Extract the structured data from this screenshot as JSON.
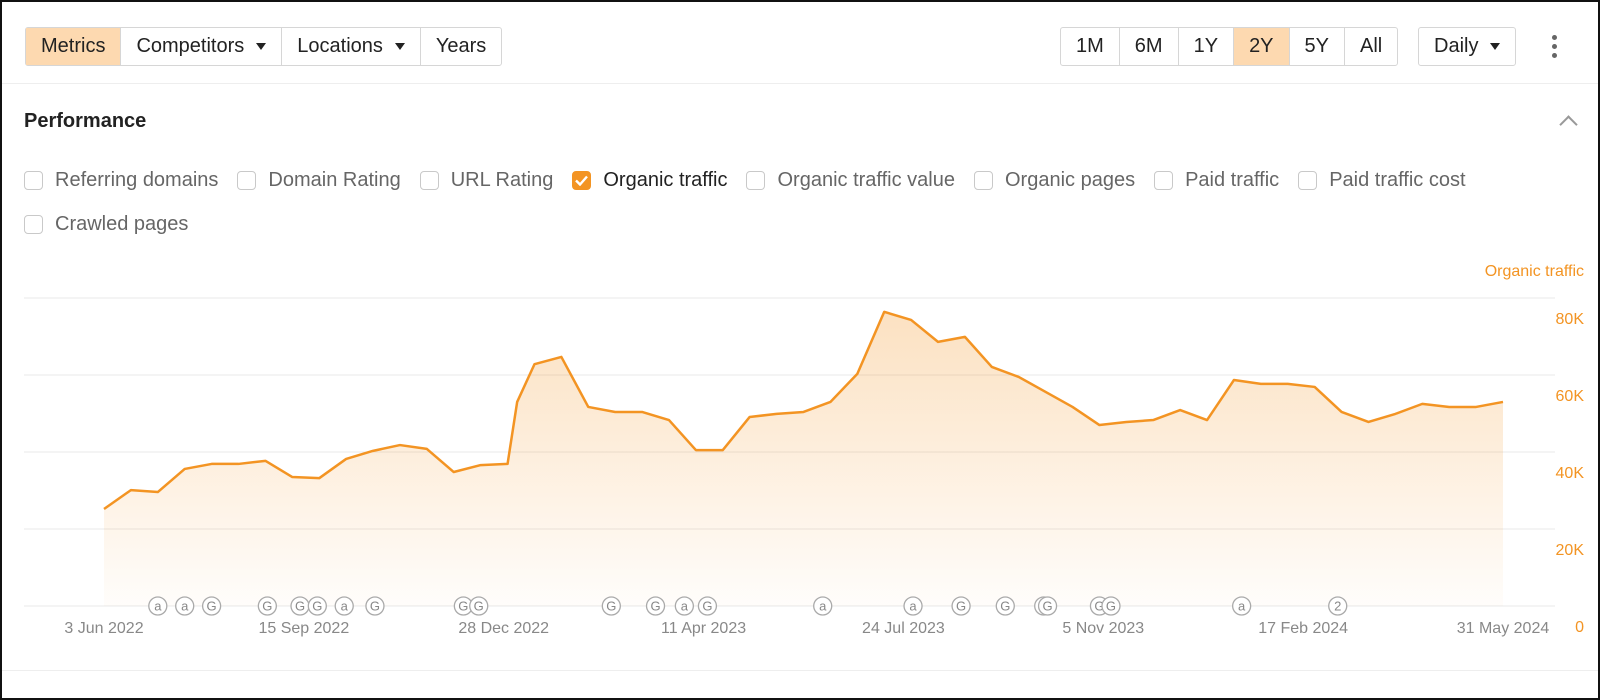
{
  "toolbar": {
    "views": [
      {
        "label": "Metrics",
        "active": true
      },
      {
        "label": "Competitors",
        "dropdown": true
      },
      {
        "label": "Locations",
        "dropdown": true
      },
      {
        "label": "Years"
      }
    ],
    "periods": [
      {
        "label": "1M"
      },
      {
        "label": "6M"
      },
      {
        "label": "1Y"
      },
      {
        "label": "2Y",
        "active": true
      },
      {
        "label": "5Y"
      },
      {
        "label": "All"
      }
    ],
    "interval": {
      "label": "Daily",
      "dropdown": true
    }
  },
  "panel": {
    "title": "Performance",
    "metrics": [
      {
        "label": "Referring domains",
        "checked": false
      },
      {
        "label": "Domain Rating",
        "checked": false
      },
      {
        "label": "URL Rating",
        "checked": false
      },
      {
        "label": "Organic traffic",
        "checked": true
      },
      {
        "label": "Organic traffic value",
        "checked": false
      },
      {
        "label": "Organic pages",
        "checked": false
      },
      {
        "label": "Paid traffic",
        "checked": false
      },
      {
        "label": "Paid traffic cost",
        "checked": false
      },
      {
        "label": "Crawled pages",
        "checked": false
      }
    ]
  },
  "chart_data": {
    "type": "line",
    "x": [
      "2022-06-03",
      "2022-06-17",
      "2022-07-01",
      "2022-07-15",
      "2022-07-29",
      "2022-08-12",
      "2022-08-26",
      "2022-09-09",
      "2022-09-23",
      "2022-10-07",
      "2022-10-21",
      "2022-11-04",
      "2022-11-18",
      "2022-12-02",
      "2022-12-16",
      "2022-12-30",
      "2023-01-04",
      "2023-01-13",
      "2023-01-27",
      "2023-02-10",
      "2023-02-24",
      "2023-03-10",
      "2023-03-24",
      "2023-04-07",
      "2023-04-21",
      "2023-05-05",
      "2023-05-19",
      "2023-06-02",
      "2023-06-16",
      "2023-06-30",
      "2023-07-14",
      "2023-07-28",
      "2023-08-11",
      "2023-08-25",
      "2023-09-08",
      "2023-09-22",
      "2023-10-06",
      "2023-10-20",
      "2023-11-03",
      "2023-11-17",
      "2023-12-01",
      "2023-12-15",
      "2023-12-29",
      "2024-01-12",
      "2024-01-26",
      "2024-02-09",
      "2024-02-23",
      "2024-03-08",
      "2024-03-22",
      "2024-04-05",
      "2024-04-19",
      "2024-05-03",
      "2024-05-17",
      "2024-05-31"
    ],
    "series": [
      {
        "name": "Organic traffic",
        "color": "#f39423",
        "values": [
          25200,
          30100,
          29600,
          35600,
          36900,
          36900,
          37700,
          33500,
          33200,
          38200,
          40300,
          41800,
          40800,
          34800,
          36600,
          36900,
          53000,
          62800,
          64700,
          51700,
          50400,
          50400,
          48300,
          40500,
          40500,
          49100,
          49900,
          50400,
          53000,
          60300,
          76400,
          74300,
          68600,
          69900,
          62100,
          59500,
          55600,
          51700,
          47000,
          47800,
          48300,
          50900,
          48300,
          58700,
          57700,
          57700,
          56900,
          50400,
          47800,
          49900,
          52500,
          51700,
          51700,
          53000
        ]
      }
    ],
    "xlim": [
      "2022-06-03",
      "2024-05-31"
    ],
    "xticks": [
      {
        "value": "2022-06-03",
        "label": "3 Jun 2022"
      },
      {
        "value": "2022-09-15",
        "label": "15 Sep 2022"
      },
      {
        "value": "2022-12-28",
        "label": "28 Dec 2022"
      },
      {
        "value": "2023-04-11",
        "label": "11 Apr 2023"
      },
      {
        "value": "2023-07-24",
        "label": "24 Jul 2023"
      },
      {
        "value": "2023-11-05",
        "label": "5 Nov 2023"
      },
      {
        "value": "2024-02-17",
        "label": "17 Feb 2024"
      },
      {
        "value": "2024-05-31",
        "label": "31 May 2024"
      }
    ],
    "ylim": [
      0,
      80000
    ],
    "yticks": [
      0,
      {
        "value": 20000,
        "label": "20K"
      },
      {
        "value": 40000,
        "label": "40K"
      },
      {
        "value": 60000,
        "label": "60K"
      },
      {
        "value": 80000,
        "label": "80K"
      }
    ],
    "grid": true,
    "annotations": [
      {
        "x": "2022-07-01",
        "label": "a"
      },
      {
        "x": "2022-07-15",
        "label": "a"
      },
      {
        "x": "2022-07-29",
        "label": "G"
      },
      {
        "x": "2022-08-27",
        "label": "G"
      },
      {
        "x": "2022-09-13",
        "label": "G"
      },
      {
        "x": "2022-09-22",
        "label": "G"
      },
      {
        "x": "2022-10-06",
        "label": "a"
      },
      {
        "x": "2022-10-22",
        "label": "G"
      },
      {
        "x": "2022-12-07",
        "label": "G"
      },
      {
        "x": "2022-12-15",
        "label": "G"
      },
      {
        "x": "2023-02-22",
        "label": "G"
      },
      {
        "x": "2023-03-17",
        "label": "G"
      },
      {
        "x": "2023-04-01",
        "label": "a"
      },
      {
        "x": "2023-04-13",
        "label": "G"
      },
      {
        "x": "2023-06-12",
        "label": "a"
      },
      {
        "x": "2023-07-29",
        "label": "a"
      },
      {
        "x": "2023-08-23",
        "label": "G"
      },
      {
        "x": "2023-09-15",
        "label": "G"
      },
      {
        "x": "2023-10-05",
        "label": "G"
      },
      {
        "x": "2023-10-07",
        "label": "G"
      },
      {
        "x": "2023-11-03",
        "label": "G"
      },
      {
        "x": "2023-11-09",
        "label": "G"
      },
      {
        "x": "2024-01-16",
        "label": "a"
      },
      {
        "x": "2024-03-06",
        "label": "2"
      }
    ]
  }
}
